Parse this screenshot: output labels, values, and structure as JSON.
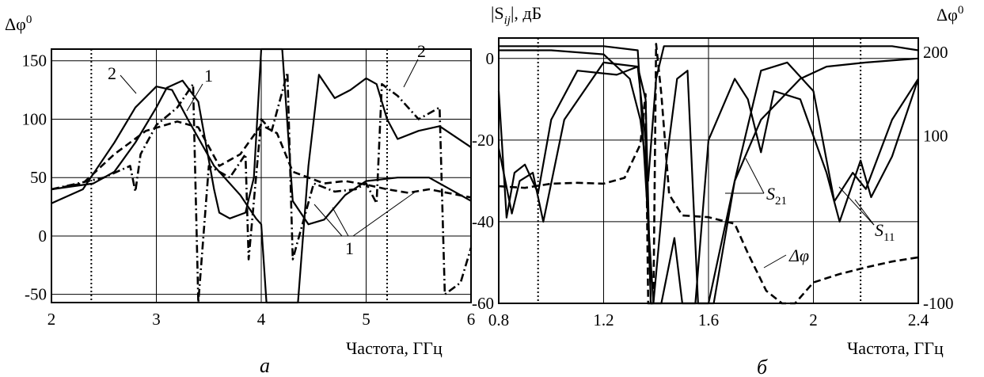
{
  "chart_data": [
    {
      "type": "line",
      "panel_label": "а",
      "ylabel": "Δφ",
      "ylabel_sup": "0",
      "xlabel": "Частота, ГГц",
      "xlim": [
        2,
        6
      ],
      "ylim": [
        -57,
        160
      ],
      "x_ticks": [
        "2",
        "3",
        "4",
        "5",
        "6"
      ],
      "y_ticks": [
        "150",
        "100",
        "50",
        "0",
        "-50"
      ],
      "dotted_x": [
        2.38,
        5.2
      ],
      "grid": true,
      "annotations": [
        "1",
        "2",
        "2",
        "1"
      ],
      "series": [
        {
          "style": "solid",
          "values": [
            [
              2,
              40
            ],
            [
              2.4,
              45
            ],
            [
              2.6,
              55
            ],
            [
              2.8,
              80
            ],
            [
              3.0,
              110
            ],
            [
              3.1,
              127
            ],
            [
              3.25,
              133
            ],
            [
              3.4,
              115
            ],
            [
              3.55,
              40
            ],
            [
              3.6,
              20
            ],
            [
              3.7,
              15
            ],
            [
              3.85,
              20
            ],
            [
              3.93,
              50
            ],
            [
              4.0,
              160
            ],
            [
              4.2,
              160
            ],
            [
              4.3,
              30
            ],
            [
              4.45,
              10
            ],
            [
              4.6,
              14
            ],
            [
              4.8,
              35
            ],
            [
              5.0,
              47
            ],
            [
              5.3,
              50
            ],
            [
              5.6,
              50
            ],
            [
              6,
              30
            ]
          ]
        },
        {
          "style": "solid",
          "values": [
            [
              2,
              28
            ],
            [
              2.3,
              40
            ],
            [
              2.6,
              80
            ],
            [
              2.8,
              110
            ],
            [
              3.0,
              128
            ],
            [
              3.15,
              125
            ],
            [
              3.3,
              100
            ],
            [
              3.55,
              60
            ],
            [
              3.8,
              35
            ],
            [
              3.95,
              15
            ],
            [
              4.0,
              10
            ],
            [
              4.05,
              -57
            ],
            [
              4.35,
              -57
            ],
            [
              4.45,
              60
            ],
            [
              4.55,
              138
            ],
            [
              4.7,
              118
            ],
            [
              4.85,
              125
            ],
            [
              5.0,
              135
            ],
            [
              5.1,
              130
            ],
            [
              5.2,
              100
            ],
            [
              5.3,
              83
            ],
            [
              5.5,
              90
            ],
            [
              5.7,
              94
            ],
            [
              6,
              76
            ]
          ]
        },
        {
          "style": "dashed",
          "values": [
            [
              2,
              40
            ],
            [
              2.3,
              45
            ],
            [
              2.6,
              70
            ],
            [
              2.9,
              90
            ],
            [
              3.2,
              98
            ],
            [
              3.4,
              93
            ],
            [
              3.6,
              60
            ],
            [
              3.8,
              70
            ],
            [
              4.0,
              95
            ],
            [
              4.15,
              88
            ],
            [
              4.3,
              55
            ],
            [
              4.6,
              45
            ],
            [
              4.8,
              47
            ],
            [
              5.0,
              44
            ],
            [
              5.2,
              40
            ],
            [
              5.4,
              37
            ],
            [
              5.6,
              40
            ],
            [
              6,
              33
            ]
          ]
        },
        {
          "style": "dashdot",
          "values": [
            [
              2,
              40
            ],
            [
              2.5,
              50
            ],
            [
              2.75,
              60
            ],
            [
              2.8,
              38
            ],
            [
              2.85,
              70
            ],
            [
              3.0,
              95
            ],
            [
              3.2,
              110
            ],
            [
              3.35,
              130
            ],
            [
              3.4,
              -57
            ],
            [
              3.5,
              60
            ],
            [
              3.7,
              50
            ],
            [
              3.85,
              70
            ],
            [
              3.88,
              -20
            ],
            [
              4.0,
              100
            ],
            [
              4.1,
              90
            ],
            [
              4.25,
              140
            ],
            [
              4.3,
              -20
            ],
            [
              4.5,
              45
            ],
            [
              4.7,
              38
            ],
            [
              4.9,
              40
            ],
            [
              5.0,
              45
            ],
            [
              5.1,
              28
            ],
            [
              5.15,
              130
            ],
            [
              5.3,
              120
            ],
            [
              5.5,
              100
            ],
            [
              5.7,
              110
            ],
            [
              5.75,
              -50
            ],
            [
              5.9,
              -40
            ],
            [
              6,
              -10
            ]
          ]
        }
      ]
    },
    {
      "type": "line",
      "panel_label": "б",
      "ylabel": "|S",
      "ylabel_sub": "ij",
      "ylabel_rest": "|, дБ",
      "y2label": "Δφ",
      "y2label_sup": "0",
      "xlabel": "Частота, ГГц",
      "xlim": [
        0.8,
        2.4
      ],
      "ylim": [
        -60,
        5
      ],
      "y2lim": [
        -100,
        217
      ],
      "x_ticks": [
        "0.8",
        "1.2",
        "1.6",
        "2",
        "2.4"
      ],
      "y_ticks": [
        "0",
        "-20",
        "-40",
        "-60"
      ],
      "y2_ticks": [
        "200",
        "100",
        "-100"
      ],
      "dotted_x": [
        0.95,
        2.18
      ],
      "grid": true,
      "series_labels": [
        "S",
        "21",
        "S",
        "11",
        "Δφ"
      ],
      "series": [
        {
          "name": "S11",
          "style": "solid",
          "values": [
            [
              0.8,
              -8
            ],
            [
              0.83,
              -39
            ],
            [
              0.86,
              -28
            ],
            [
              0.9,
              -26
            ],
            [
              0.95,
              -33
            ],
            [
              1.0,
              -15
            ],
            [
              1.1,
              -3
            ],
            [
              1.25,
              -4
            ],
            [
              1.33,
              -2
            ],
            [
              1.36,
              -10
            ],
            [
              1.38,
              -60
            ],
            [
              1.42,
              -60
            ],
            [
              1.47,
              -44
            ],
            [
              1.5,
              -60
            ],
            [
              1.55,
              -60
            ],
            [
              1.6,
              -20
            ],
            [
              1.7,
              -5
            ],
            [
              1.75,
              -10
            ],
            [
              1.8,
              -23
            ],
            [
              1.85,
              -8
            ],
            [
              1.95,
              -10
            ],
            [
              2.05,
              -28
            ],
            [
              2.1,
              -40
            ],
            [
              2.18,
              -25
            ],
            [
              2.22,
              -34
            ],
            [
              2.3,
              -24
            ],
            [
              2.4,
              -5
            ]
          ]
        },
        {
          "name": "S11 (2)",
          "style": "solid",
          "values": [
            [
              0.8,
              -22
            ],
            [
              0.85,
              -38
            ],
            [
              0.88,
              -30
            ],
            [
              0.93,
              -28
            ],
            [
              0.97,
              -40
            ],
            [
              1.05,
              -15
            ],
            [
              1.2,
              -1
            ],
            [
              1.33,
              -2
            ],
            [
              1.36,
              -20
            ],
            [
              1.38,
              -60
            ],
            [
              1.6,
              -60
            ],
            [
              1.7,
              -30
            ],
            [
              1.8,
              -3
            ],
            [
              1.9,
              -1
            ],
            [
              2.0,
              -8
            ],
            [
              2.08,
              -35
            ],
            [
              2.15,
              -28
            ],
            [
              2.2,
              -32
            ],
            [
              2.3,
              -15
            ],
            [
              2.4,
              -5
            ]
          ]
        },
        {
          "name": "S21",
          "style": "solid",
          "values": [
            [
              0.8,
              2
            ],
            [
              1.0,
              2
            ],
            [
              1.2,
              1
            ],
            [
              1.3,
              -5
            ],
            [
              1.34,
              -15
            ],
            [
              1.37,
              -30
            ],
            [
              1.4,
              -5
            ],
            [
              1.43,
              3
            ],
            [
              1.6,
              3
            ],
            [
              2.0,
              3
            ],
            [
              2.3,
              3
            ],
            [
              2.4,
              2
            ]
          ]
        },
        {
          "name": "S21 (2)",
          "style": "solid",
          "values": [
            [
              0.8,
              3
            ],
            [
              1.2,
              3
            ],
            [
              1.33,
              2
            ],
            [
              1.37,
              -40
            ],
            [
              1.39,
              -60
            ],
            [
              1.44,
              -25
            ],
            [
              1.48,
              -5
            ],
            [
              1.52,
              -3
            ],
            [
              1.56,
              -60
            ],
            [
              1.62,
              -60
            ],
            [
              1.7,
              -30
            ],
            [
              1.8,
              -15
            ],
            [
              1.95,
              -5
            ],
            [
              2.05,
              -2
            ],
            [
              2.2,
              -1
            ],
            [
              2.4,
              0
            ]
          ]
        },
        {
          "name": "Δφ",
          "style": "dashed",
          "axis": "y2",
          "values": [
            [
              0.8,
              40
            ],
            [
              0.9,
              38
            ],
            [
              1.0,
              43
            ],
            [
              1.1,
              44
            ],
            [
              1.2,
              43
            ],
            [
              1.28,
              50
            ],
            [
              1.34,
              90
            ],
            [
              1.36,
              150
            ],
            [
              1.37,
              -100
            ],
            [
              1.39,
              -100
            ],
            [
              1.4,
              210
            ],
            [
              1.42,
              150
            ],
            [
              1.45,
              30
            ],
            [
              1.5,
              5
            ],
            [
              1.6,
              3
            ],
            [
              1.7,
              -5
            ],
            [
              1.75,
              -40
            ],
            [
              1.82,
              -85
            ],
            [
              1.88,
              -100
            ],
            [
              1.93,
              -100
            ],
            [
              2.0,
              -75
            ],
            [
              2.1,
              -65
            ],
            [
              2.2,
              -57
            ],
            [
              2.3,
              -50
            ],
            [
              2.4,
              -45
            ]
          ]
        }
      ]
    }
  ]
}
